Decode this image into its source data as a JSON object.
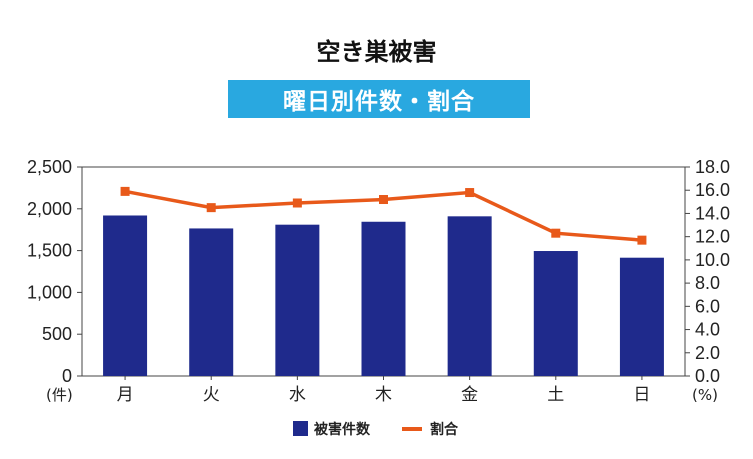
{
  "chart_data": {
    "type": "bar",
    "title": "空き巣被害",
    "subtitle": "曜日別件数・割合",
    "categories": [
      "月",
      "火",
      "水",
      "木",
      "金",
      "土",
      "日"
    ],
    "series": [
      {
        "name": "被害件数",
        "kind": "bar",
        "axis": "left",
        "color": "#1f2a8c",
        "values": [
          1920,
          1765,
          1810,
          1845,
          1910,
          1495,
          1415
        ]
      },
      {
        "name": "割合",
        "kind": "line",
        "axis": "right",
        "color": "#e8591a",
        "values": [
          15.9,
          14.5,
          14.9,
          15.2,
          15.8,
          12.3,
          11.7
        ]
      }
    ],
    "y_left": {
      "unit": "(件)",
      "ylim": [
        0,
        2500
      ],
      "ticks": [
        "0",
        "500",
        "1,000",
        "1,500",
        "2,000",
        "2,500"
      ]
    },
    "y_right": {
      "unit": "(%)",
      "ylim": [
        0,
        18
      ],
      "ticks": [
        "0.0",
        "2.0",
        "4.0",
        "6.0",
        "8.0",
        "10.0",
        "12.0",
        "14.0",
        "16.0",
        "18.0"
      ]
    },
    "grid": false,
    "legend_position": "bottom-center"
  }
}
